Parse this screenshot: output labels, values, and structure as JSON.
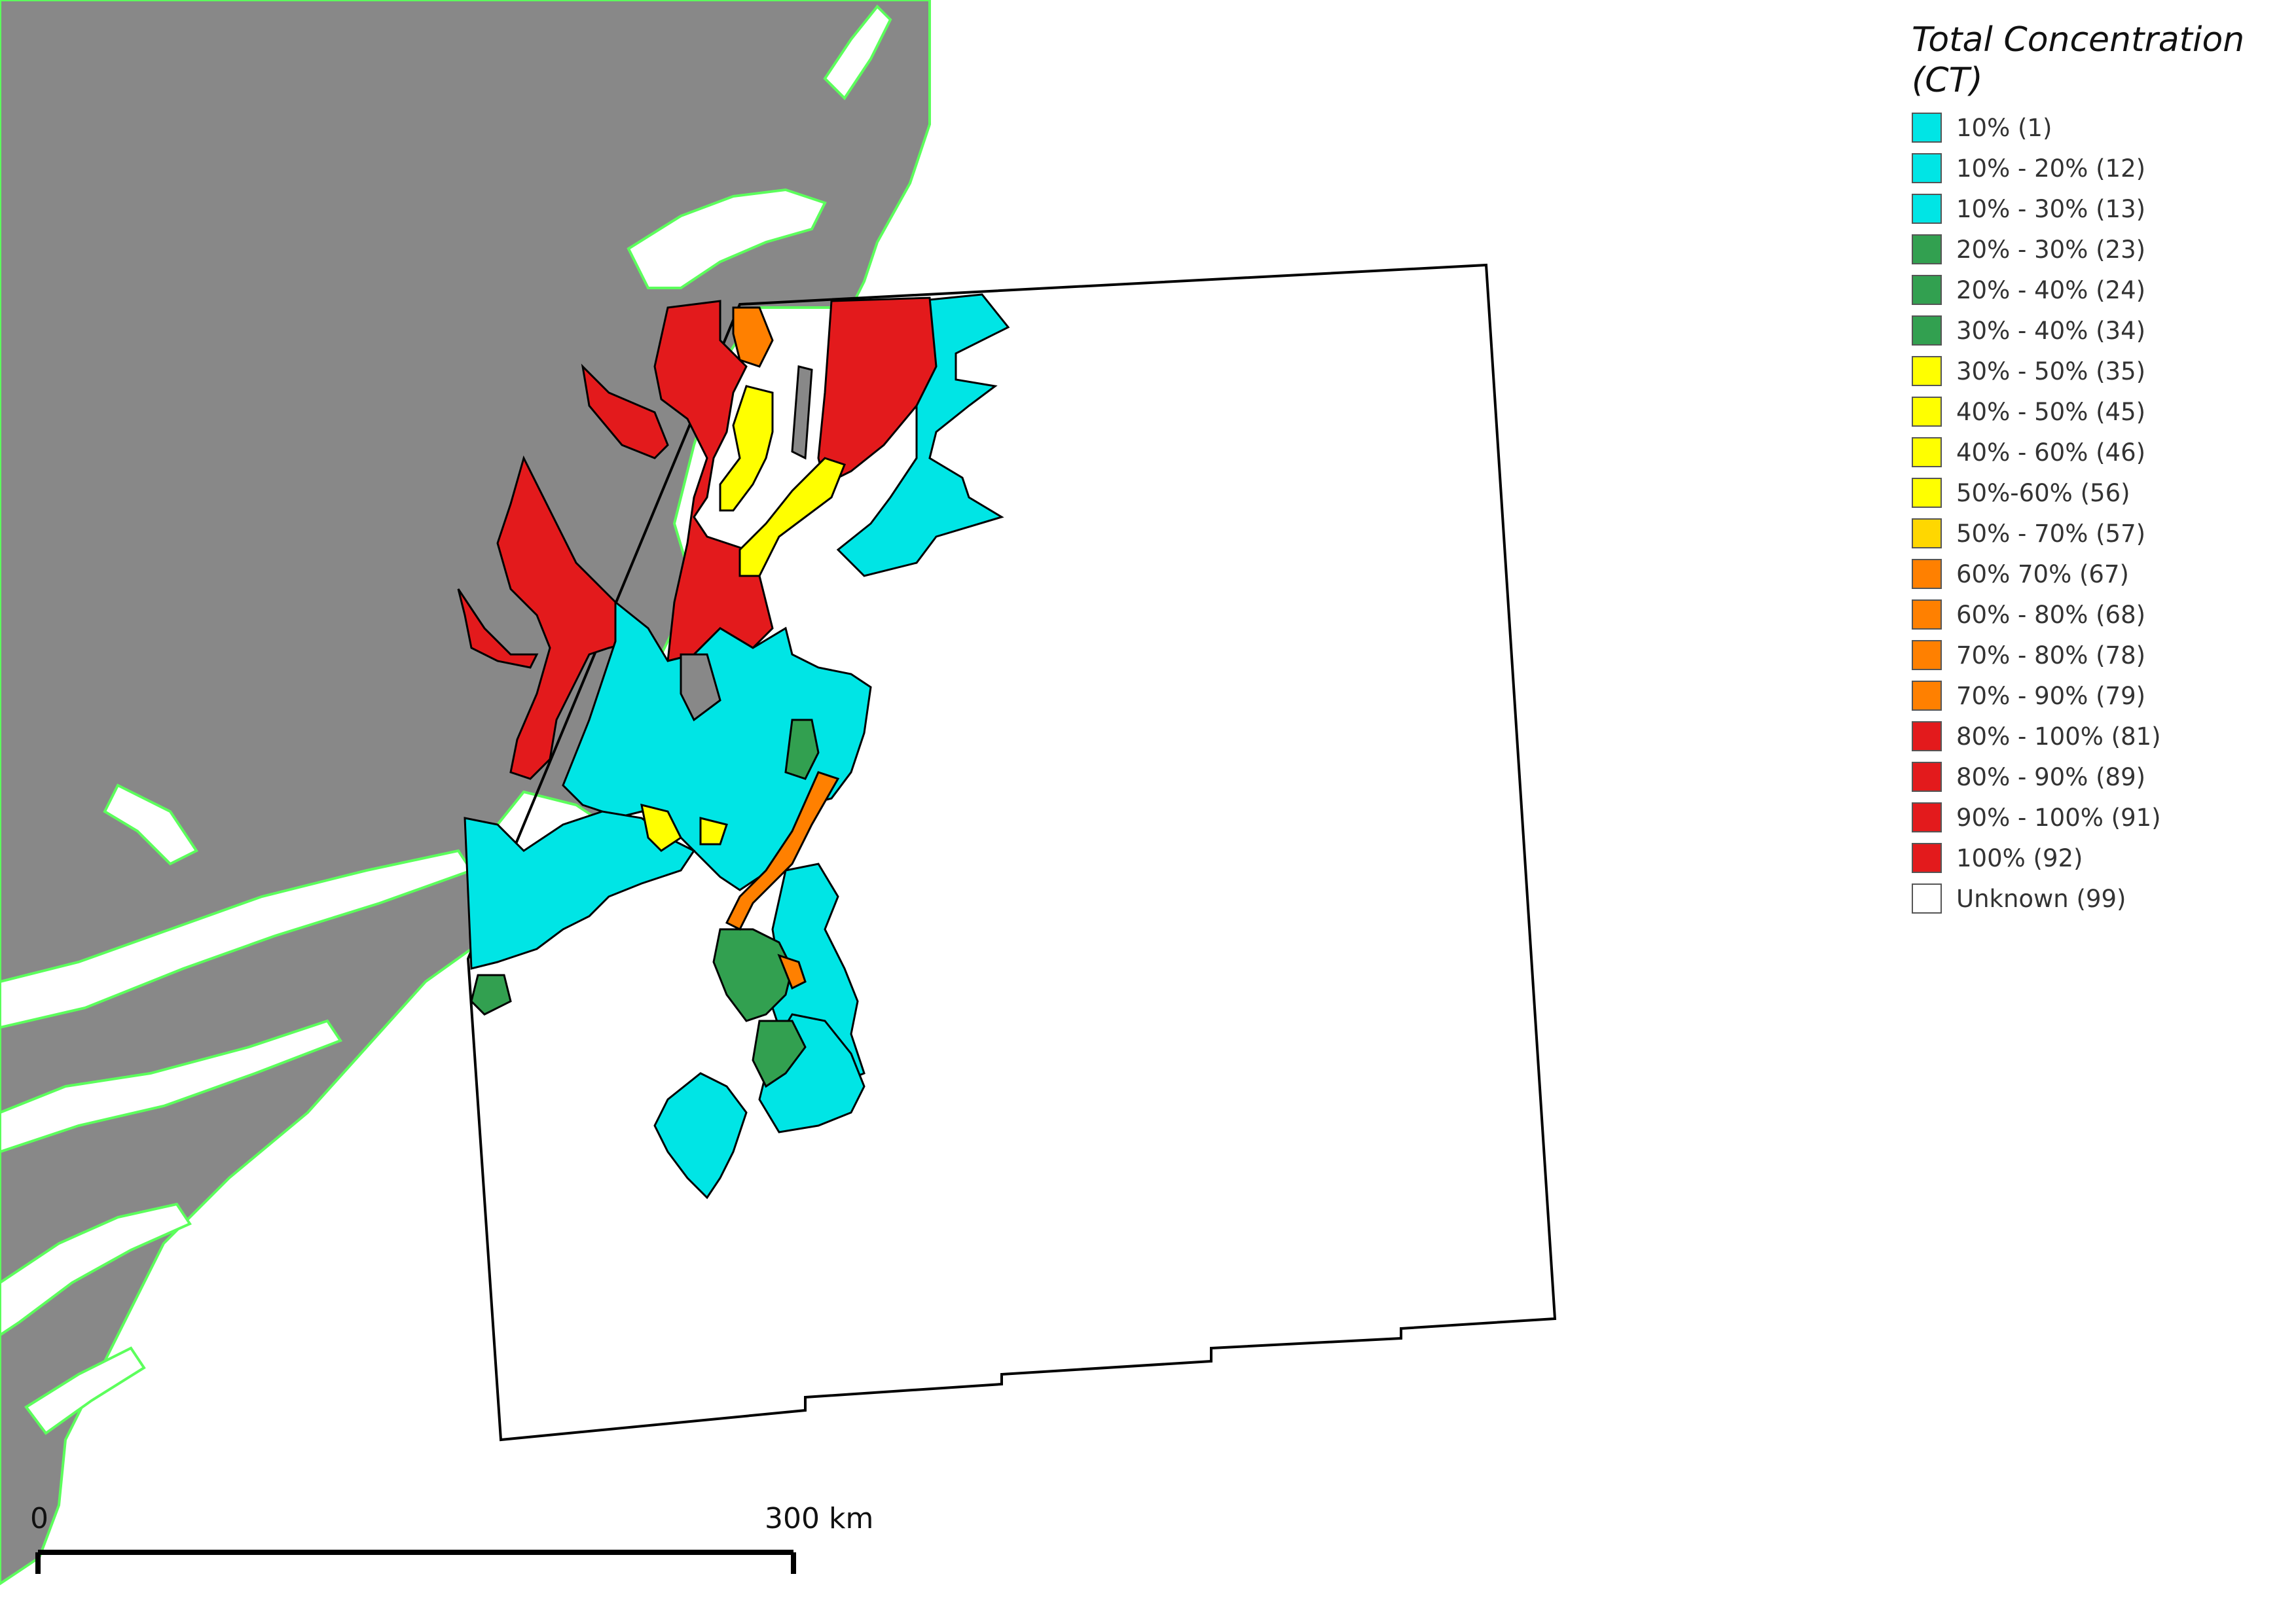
{
  "legend": {
    "title": "Total Concentration (CT)",
    "items": [
      {
        "label": "10% (1)",
        "color": "#00e5e5"
      },
      {
        "label": "10% - 20% (12)",
        "color": "#00e5e5"
      },
      {
        "label": "10% - 30% (13)",
        "color": "#00e5e5"
      },
      {
        "label": "20% - 30% (23)",
        "color": "#32a050"
      },
      {
        "label": "20% - 40% (24)",
        "color": "#32a050"
      },
      {
        "label": "30% - 40% (34)",
        "color": "#32a050"
      },
      {
        "label": "30% - 50% (35)",
        "color": "#ffff00"
      },
      {
        "label": "40% - 50% (45)",
        "color": "#ffff00"
      },
      {
        "label": "40% - 60% (46)",
        "color": "#ffff00"
      },
      {
        "label": "50%-60% (56)",
        "color": "#ffff00"
      },
      {
        "label": "50% - 70% (57)",
        "color": "#ffd700"
      },
      {
        "label": "60% 70% (67)",
        "color": "#ff8000"
      },
      {
        "label": "60% - 80% (68)",
        "color": "#ff8000"
      },
      {
        "label": "70% - 80% (78)",
        "color": "#ff8000"
      },
      {
        "label": "70% - 90% (79)",
        "color": "#ff8000"
      },
      {
        "label": "80% - 100% (81)",
        "color": "#e31a1c"
      },
      {
        "label": "80% - 90% (89)",
        "color": "#e31a1c"
      },
      {
        "label": "90% - 100% (91)",
        "color": "#e31a1c"
      },
      {
        "label": "100% (92)",
        "color": "#e31a1c"
      },
      {
        "label": "Unknown (99)",
        "color": "#ffffff"
      }
    ]
  },
  "scalebar": {
    "start_label": "0",
    "end_label": "300 km"
  },
  "colors": {
    "land": "#888888",
    "coast": "#5cff5c",
    "outline": "#000000"
  }
}
